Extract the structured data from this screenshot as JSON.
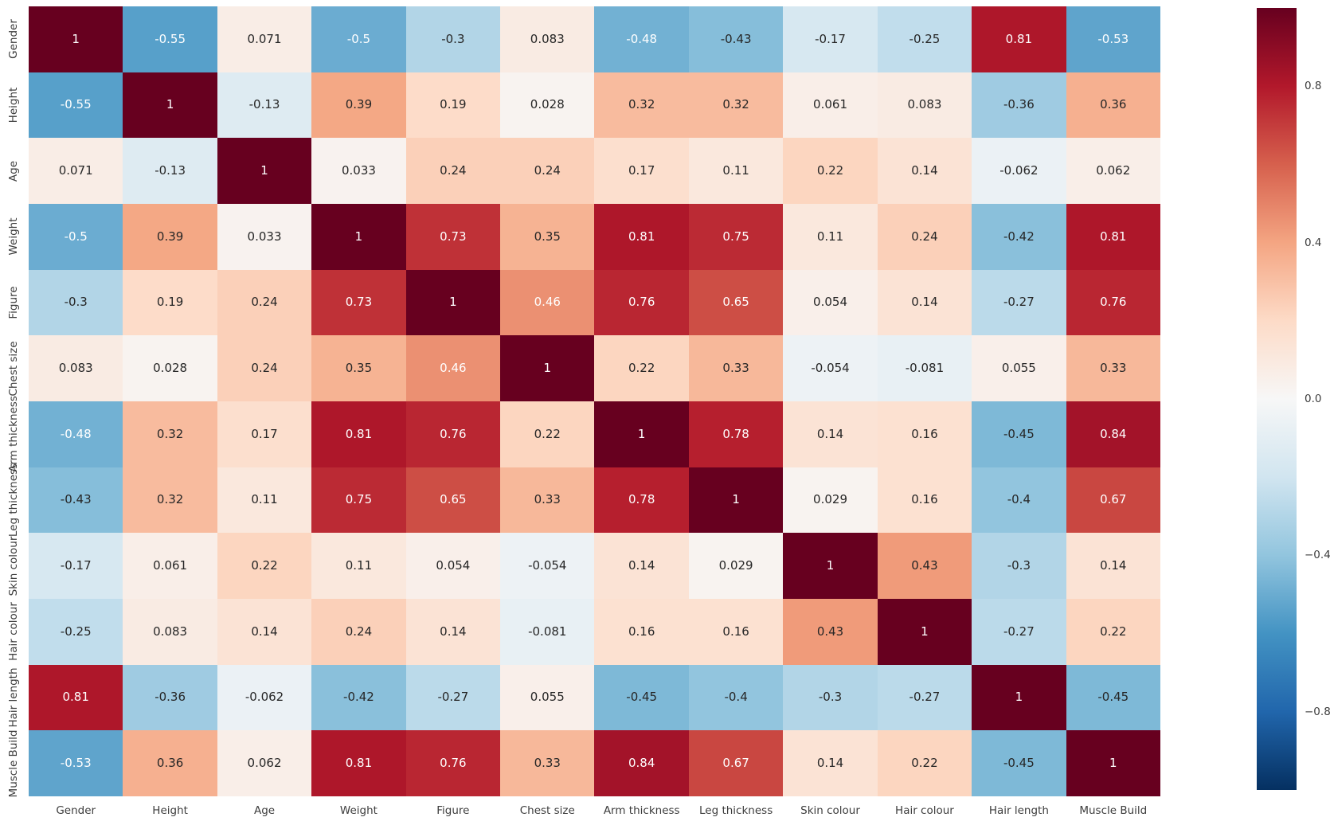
{
  "chart_data": {
    "type": "heatmap",
    "title": "",
    "xlabel": "",
    "ylabel": "",
    "categories": [
      "Gender",
      "Height",
      "Age",
      "Weight",
      "Figure",
      "Chest size",
      "Arm thickness",
      "Leg thickness",
      "Skin colour",
      "Hair colour",
      "Hair length",
      "Muscle Build"
    ],
    "matrix": [
      [
        1,
        -0.55,
        0.071,
        -0.5,
        -0.3,
        0.083,
        -0.48,
        -0.43,
        -0.17,
        -0.25,
        0.81,
        -0.53
      ],
      [
        -0.55,
        1,
        -0.13,
        0.39,
        0.19,
        0.028,
        0.32,
        0.32,
        0.061,
        0.083,
        -0.36,
        0.36
      ],
      [
        0.071,
        -0.13,
        1,
        0.033,
        0.24,
        0.24,
        0.17,
        0.11,
        0.22,
        0.14,
        -0.062,
        0.062
      ],
      [
        -0.5,
        0.39,
        0.033,
        1,
        0.73,
        0.35,
        0.81,
        0.75,
        0.11,
        0.24,
        -0.42,
        0.81
      ],
      [
        -0.3,
        0.19,
        0.24,
        0.73,
        1,
        0.46,
        0.76,
        0.65,
        0.054,
        0.14,
        -0.27,
        0.76
      ],
      [
        0.083,
        0.028,
        0.24,
        0.35,
        0.46,
        1,
        0.22,
        0.33,
        -0.054,
        -0.081,
        0.055,
        0.33
      ],
      [
        -0.48,
        0.32,
        0.17,
        0.81,
        0.76,
        0.22,
        1,
        0.78,
        0.14,
        0.16,
        -0.45,
        0.84
      ],
      [
        -0.43,
        0.32,
        0.11,
        0.75,
        0.65,
        0.33,
        0.78,
        1,
        0.029,
        0.16,
        -0.4,
        0.67
      ],
      [
        -0.17,
        0.061,
        0.22,
        0.11,
        0.054,
        -0.054,
        0.14,
        0.029,
        1,
        0.43,
        -0.3,
        0.14
      ],
      [
        -0.25,
        0.083,
        0.14,
        0.24,
        0.14,
        -0.081,
        0.16,
        0.16,
        0.43,
        1,
        -0.27,
        0.22
      ],
      [
        0.81,
        -0.36,
        -0.062,
        -0.42,
        -0.27,
        0.055,
        -0.45,
        -0.4,
        -0.3,
        -0.27,
        1,
        -0.45
      ],
      [
        -0.53,
        0.36,
        0.062,
        0.81,
        0.76,
        0.33,
        0.84,
        0.67,
        0.14,
        0.22,
        -0.45,
        1
      ]
    ],
    "colormap": "RdBu_r",
    "colormap_anchors": [
      "#053061",
      "#2166ac",
      "#4393c3",
      "#92c5de",
      "#d1e5f0",
      "#f7f7f7",
      "#fddbc7",
      "#f4a582",
      "#d6604d",
      "#b2182b",
      "#67001f"
    ],
    "vmin": -1,
    "vmax": 1,
    "grid": false,
    "legend_position": "right-colorbar",
    "colorbar": {
      "ticks": [
        {
          "label": "0.8",
          "value": 0.8
        },
        {
          "label": "0.4",
          "value": 0.4
        },
        {
          "label": "0.0",
          "value": 0.0
        },
        {
          "label": "−0.4",
          "value": -0.4
        },
        {
          "label": "−0.8",
          "value": -0.8
        }
      ]
    },
    "annotation_text_colors": {
      "light": "#ffffff",
      "dark": "#262626"
    },
    "luminance_threshold": 0.408
  }
}
